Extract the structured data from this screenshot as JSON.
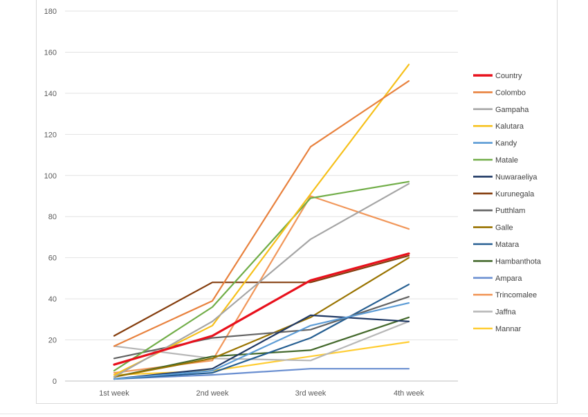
{
  "chart_data": {
    "type": "line",
    "title": "",
    "xlabel": "",
    "ylabel": "",
    "categories": [
      "1st week",
      "2nd week",
      "3rd week",
      "4th week"
    ],
    "ylim": [
      0,
      180
    ],
    "yticks": [
      0,
      20,
      40,
      60,
      80,
      100,
      120,
      140,
      160,
      180
    ],
    "grid": true,
    "legend_position": "right",
    "series": [
      {
        "name": "Country",
        "color": "#e8101c",
        "values": [
          8,
          22,
          49,
          62
        ]
      },
      {
        "name": "Colombo",
        "color": "#e8813d",
        "values": [
          17,
          39,
          114,
          146
        ]
      },
      {
        "name": "Gampaha",
        "color": "#a5a5a5",
        "values": [
          2,
          29,
          69,
          96
        ]
      },
      {
        "name": "Kalutara",
        "color": "#f6c01a",
        "values": [
          3,
          27,
          91,
          154
        ]
      },
      {
        "name": "Kandy",
        "color": "#5b9bd5",
        "values": [
          1,
          5,
          27,
          38
        ]
      },
      {
        "name": "Matale",
        "color": "#70ad47",
        "values": [
          5,
          36,
          89,
          97
        ]
      },
      {
        "name": "Nuwaraeliya",
        "color": "#1f3864",
        "values": [
          1,
          6,
          32,
          29
        ]
      },
      {
        "name": "Kurunegala",
        "color": "#843c0c",
        "values": [
          22,
          48,
          48,
          61
        ]
      },
      {
        "name": "Putthlam",
        "color": "#636363",
        "values": [
          11,
          21,
          25,
          41
        ]
      },
      {
        "name": "Galle",
        "color": "#997300",
        "values": [
          2,
          11,
          31,
          60
        ]
      },
      {
        "name": "Matara",
        "color": "#255e91",
        "values": [
          1,
          4,
          21,
          47
        ]
      },
      {
        "name": "Hambanthota",
        "color": "#43682b",
        "values": [
          2,
          12,
          15,
          31
        ]
      },
      {
        "name": "Ampara",
        "color": "#698ed0",
        "values": [
          1,
          3,
          6,
          6
        ]
      },
      {
        "name": "Trincomalee",
        "color": "#f1975a",
        "values": [
          4,
          10,
          90,
          74
        ]
      },
      {
        "name": "Jaffna",
        "color": "#b7b7b7",
        "values": [
          17,
          11,
          10,
          29
        ]
      },
      {
        "name": "Mannar",
        "color": "#ffcd33",
        "values": [
          3,
          5,
          12,
          19
        ]
      }
    ]
  }
}
